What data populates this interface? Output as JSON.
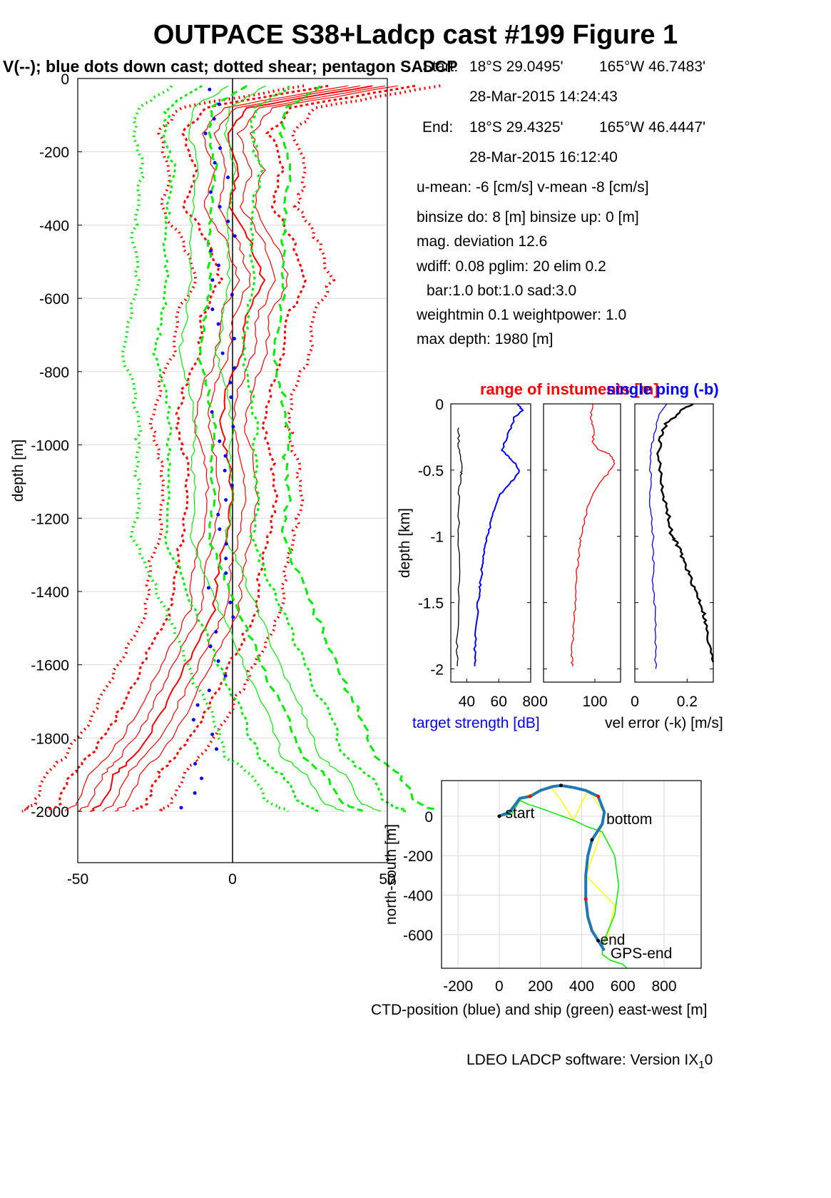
{
  "header": {
    "title": "OUTPACE S38+Ladcp cast #199  Figure 1",
    "subtitle": "V(--); blue dots down cast; dotted shear; pentagon SADCP"
  },
  "info": {
    "start_label": "Start:",
    "start_lat": "18°S 29.0495'",
    "start_lon": "165°W 46.7483'",
    "start_time": "28-Mar-2015 14:24:43",
    "end_label": "End:",
    "end_lat": "18°S 29.4325'",
    "end_lon": "165°W 46.4447'",
    "end_time": "28-Mar-2015 16:12:40",
    "means": "u-mean:  -6 [cm/s]    v-mean  -8 [cm/s]",
    "binsize": "binsize do: 8 [m]  binsize up:  0 [m]",
    "magdev": "mag. deviation 12.6",
    "wdiff": "wdiff: 0.08  pglim: 20  elim 0.2",
    "bar": "bar:1.0 bot:1.0 sad:3.0",
    "weight": "weightmin 0.1  weightpower: 1.0",
    "maxdepth": "max depth: 1980 [m]"
  },
  "colors": {
    "red": "#ff0000",
    "green": "#00ee00",
    "blue": "#0000ff",
    "black": "#000000",
    "yellow": "#ffff00",
    "cyan_blue": "#1f77b4",
    "grid": "#d9d9d9"
  },
  "footer": {
    "version_main": "LDEO LADCP software: Version IX",
    "version_sub": "1",
    "version_tail": "0"
  },
  "chart_data": [
    {
      "type": "line",
      "ylabel": "depth [m]",
      "xticks": [
        "-50",
        "0",
        "50"
      ],
      "yticks": [
        "0",
        "-200",
        "-400",
        "-600",
        "-800",
        "-1000",
        "-1200",
        "-1400",
        "-1600",
        "-1800",
        "-2000"
      ],
      "xlim": [
        -50,
        50
      ],
      "ylim": [
        -2140,
        0
      ],
      "grid": true,
      "series": [
        {
          "color": "red",
          "style": "solid",
          "x": [
            45,
            5,
            -2,
            2,
            -1,
            6,
            10,
            4,
            3,
            -2,
            -4,
            -1,
            0,
            -2,
            -5,
            -6,
            -12,
            -18,
            -24,
            -32,
            -38,
            -42,
            -46
          ],
          "y": [
            -20,
            -80,
            -150,
            -250,
            -350,
            -450,
            -550,
            -650,
            -750,
            -850,
            -950,
            -1050,
            -1150,
            -1250,
            -1350,
            -1450,
            -1550,
            -1650,
            -1750,
            -1850,
            -1900,
            -1980,
            -2000
          ]
        },
        {
          "color": "green",
          "style": "dashed",
          "x": [
            5,
            -7,
            -8,
            -5,
            -7,
            -8,
            -7,
            -9,
            -11,
            -8,
            -6,
            -7,
            -6,
            -8,
            -3,
            2,
            7,
            12,
            18,
            22,
            30,
            36,
            42
          ],
          "y": [
            -20,
            -80,
            -150,
            -250,
            -350,
            -450,
            -550,
            -650,
            -750,
            -850,
            -950,
            -1050,
            -1150,
            -1250,
            -1350,
            -1450,
            -1550,
            -1650,
            -1750,
            -1850,
            -1900,
            -1980,
            -2000
          ]
        }
      ]
    },
    {
      "type": "line",
      "title": "range of instuments [m]",
      "xlabel": "target strength [dB]",
      "ylabel": "depth [km]",
      "xticks": [
        "40",
        "60",
        "80"
      ],
      "yticks": [
        "0",
        "-0.5",
        "-1",
        "-1.5",
        "-2"
      ],
      "xlim": [
        30,
        80
      ],
      "ylim": [
        -2.1,
        0
      ],
      "series": [
        {
          "color": "blue",
          "x": [
            72,
            75,
            70,
            67,
            62,
            66,
            70,
            73,
            67,
            60,
            57,
            55,
            53,
            51,
            50,
            49,
            48,
            47,
            46,
            45,
            45
          ],
          "y": [
            0,
            -0.05,
            -0.1,
            -0.2,
            -0.35,
            -0.4,
            -0.45,
            -0.52,
            -0.6,
            -0.7,
            -0.8,
            -0.9,
            -1.0,
            -1.1,
            -1.2,
            -1.3,
            -1.4,
            -1.5,
            -1.7,
            -1.85,
            -1.98
          ]
        },
        {
          "color": "black",
          "x": [
            35,
            35,
            36,
            37,
            36,
            35,
            35,
            35,
            34,
            34
          ],
          "y": [
            -0.18,
            -0.3,
            -0.4,
            -0.5,
            -0.55,
            -0.7,
            -1.0,
            -1.4,
            -1.8,
            -1.98
          ]
        }
      ]
    },
    {
      "type": "line",
      "xticks": [
        "0",
        "100"
      ],
      "yticks": [
        "0",
        "-0.5",
        "-1",
        "-1.5",
        "-2"
      ],
      "xlim": [
        0,
        150
      ],
      "ylim": [
        -2.1,
        0
      ],
      "series": [
        {
          "color": "red",
          "x": [
            95,
            92,
            98,
            96,
            110,
            130,
            140,
            120,
            100,
            85,
            72,
            70,
            65,
            62,
            60,
            58,
            55,
            56
          ],
          "y": [
            0,
            -0.1,
            -0.2,
            -0.3,
            -0.35,
            -0.38,
            -0.45,
            -0.55,
            -0.65,
            -0.8,
            -1.0,
            -1.1,
            -1.25,
            -1.45,
            -1.6,
            -1.75,
            -1.9,
            -1.98
          ]
        }
      ]
    },
    {
      "type": "line",
      "title": "single ping (-b)",
      "xlabel": "vel error (-k) [m/s]",
      "xticks": [
        "0",
        "0.2"
      ],
      "yticks": [
        "0",
        "-0.5",
        "-1",
        "-1.5",
        "-2"
      ],
      "xlim": [
        0,
        0.3
      ],
      "ylim": [
        -2.1,
        0
      ],
      "series": [
        {
          "color": "black",
          "x": [
            0.22,
            0.18,
            0.12,
            0.1,
            0.09,
            0.1,
            0.11,
            0.13,
            0.14,
            0.16,
            0.18,
            0.2,
            0.22,
            0.24,
            0.26,
            0.27,
            0.28,
            0.3
          ],
          "y": [
            0,
            -0.05,
            -0.15,
            -0.25,
            -0.4,
            -0.55,
            -0.7,
            -0.85,
            -1.0,
            -1.05,
            -1.15,
            -1.25,
            -1.35,
            -1.45,
            -1.55,
            -1.65,
            -1.8,
            -1.95
          ]
        },
        {
          "color": "blue",
          "x": [
            0.12,
            0.09,
            0.07,
            0.06,
            0.06,
            0.06,
            0.07,
            0.07,
            0.07,
            0.08,
            0.08,
            0.08
          ],
          "y": [
            0,
            -0.1,
            -0.25,
            -0.4,
            -0.6,
            -0.8,
            -1.0,
            -1.2,
            -1.4,
            -1.6,
            -1.8,
            -2.0
          ]
        }
      ]
    },
    {
      "type": "line",
      "ylabel": "north-south [m]",
      "xlabel": "CTD-position (blue) and ship (green) east-west [m]",
      "xticks": [
        "-200",
        "0",
        "200",
        "400",
        "600",
        "800"
      ],
      "yticks": [
        "0",
        "-200",
        "-400",
        "-600"
      ],
      "xlim": [
        -280,
        980
      ],
      "ylim": [
        -770,
        180
      ],
      "annotations": [
        "start",
        "bottom",
        "end",
        "GPS-end"
      ],
      "series": [
        {
          "color": "cyan_blue",
          "x": [
            0,
            50,
            100,
            150,
            200,
            260,
            300,
            360,
            420,
            480,
            510,
            500,
            450,
            430,
            420,
            420,
            430,
            450,
            480,
            510
          ],
          "y": [
            0,
            20,
            90,
            100,
            130,
            150,
            155,
            145,
            130,
            100,
            20,
            -40,
            -120,
            -200,
            -300,
            -420,
            -510,
            -580,
            -630,
            -680
          ]
        },
        {
          "color": "green",
          "x": [
            0,
            60,
            100,
            140,
            200,
            280,
            360,
            420,
            500,
            560,
            580,
            560,
            520,
            500,
            500,
            540,
            600,
            620
          ],
          "y": [
            0,
            10,
            80,
            60,
            40,
            10,
            -20,
            -50,
            -80,
            -200,
            -350,
            -500,
            -600,
            -660,
            -700,
            -730,
            -750,
            -770
          ]
        },
        {
          "color": "yellow",
          "x": [
            100,
            250,
            300,
            360,
            430,
            510,
            480,
            420,
            560,
            530,
            500
          ],
          "y": [
            90,
            150,
            80,
            -20,
            130,
            20,
            -130,
            -300,
            -450,
            -600,
            -650
          ]
        }
      ]
    }
  ]
}
